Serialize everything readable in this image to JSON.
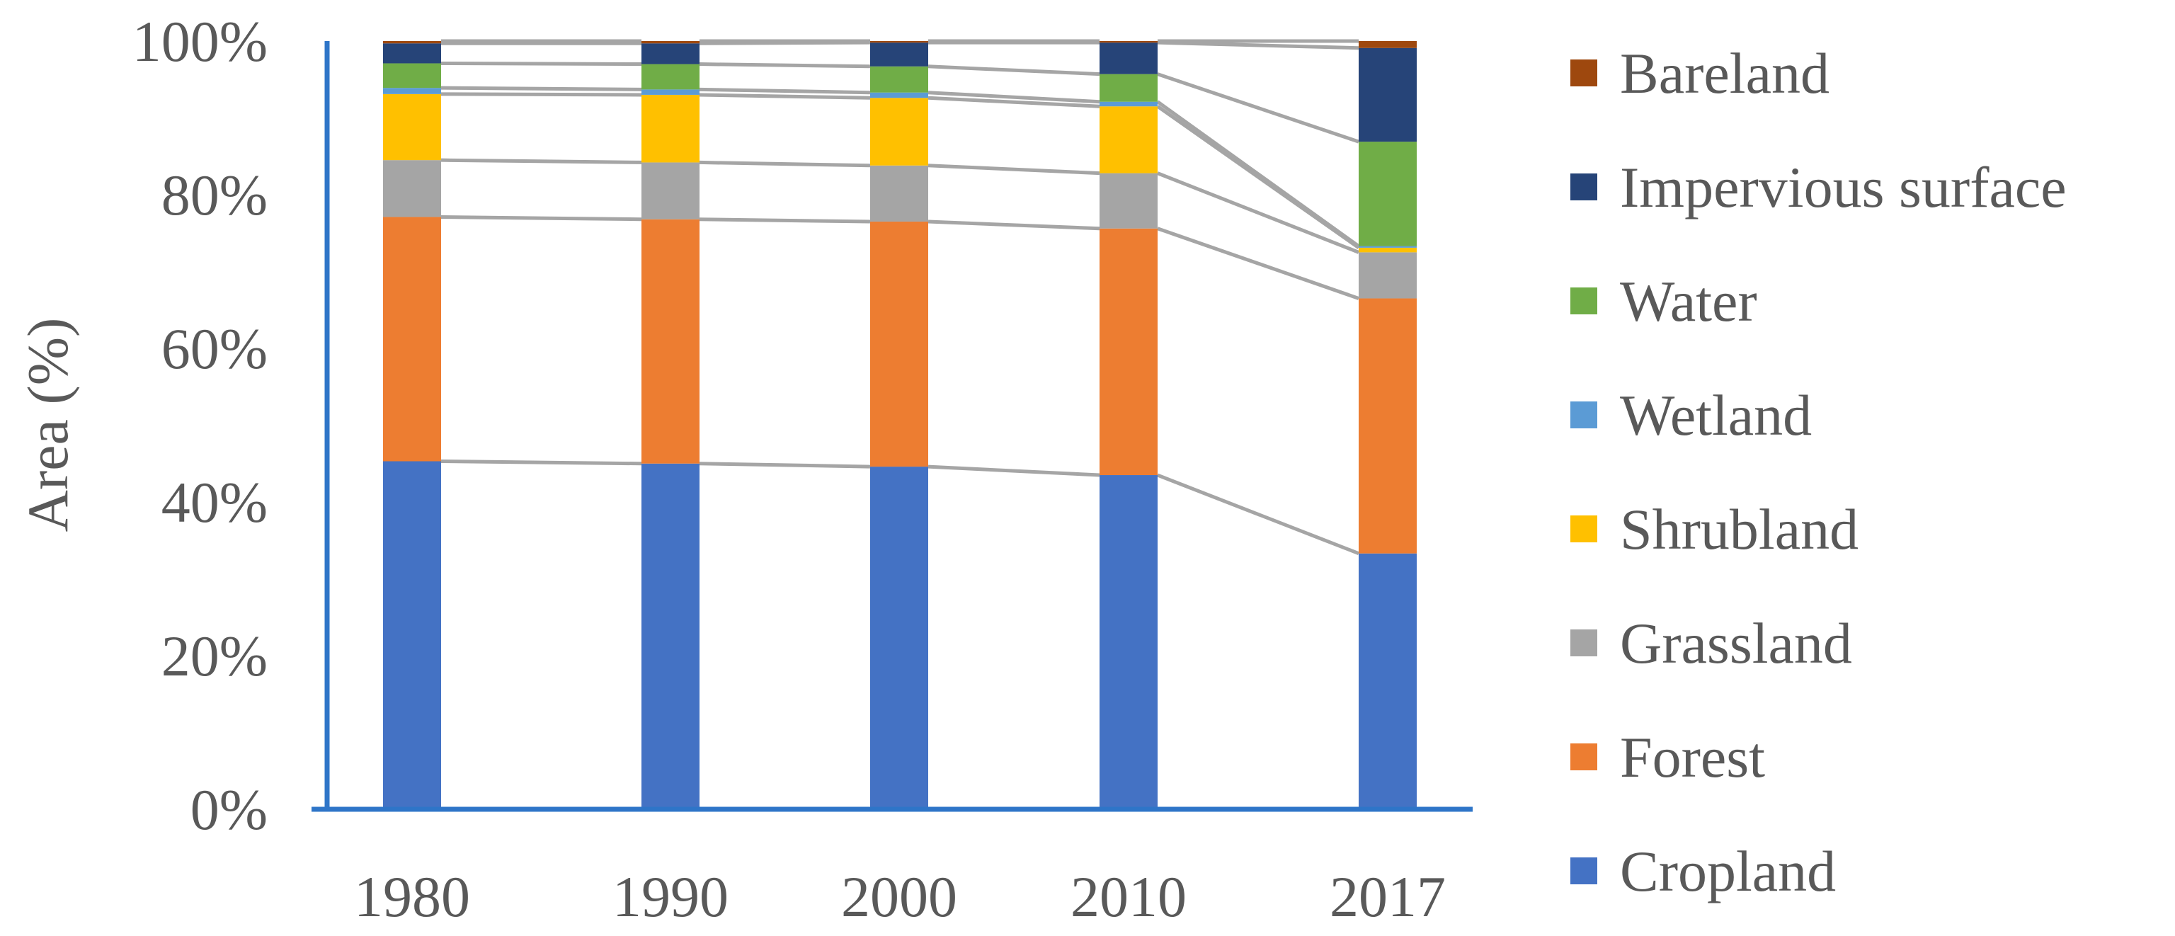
{
  "chart_data": {
    "type": "bar",
    "stacked": true,
    "percent": true,
    "title": "",
    "xlabel": "",
    "ylabel": "Area (%)",
    "ylim": [
      0,
      100
    ],
    "yticks": [
      "0%",
      "20%",
      "40%",
      "60%",
      "80%",
      "100%"
    ],
    "categories": [
      "1980",
      "1990",
      "2000",
      "2010",
      "2017"
    ],
    "series": [
      {
        "name": "Cropland",
        "color": "#4472C4",
        "values": [
          45.3,
          45.0,
          44.6,
          43.5,
          33.3
        ]
      },
      {
        "name": "Forest",
        "color": "#ED7D31",
        "values": [
          31.8,
          31.8,
          31.9,
          32.1,
          33.2
        ]
      },
      {
        "name": "Grassland",
        "color": "#A5A5A5",
        "values": [
          7.4,
          7.4,
          7.3,
          7.2,
          6.0
        ]
      },
      {
        "name": "Shrubland",
        "color": "#FFC000",
        "values": [
          8.6,
          8.8,
          8.8,
          8.7,
          0.6
        ]
      },
      {
        "name": "Wetland",
        "color": "#5B9BD5",
        "values": [
          0.8,
          0.7,
          0.7,
          0.6,
          0.2
        ]
      },
      {
        "name": "Water",
        "color": "#70AD47",
        "values": [
          3.2,
          3.3,
          3.4,
          3.6,
          13.6
        ]
      },
      {
        "name": "Impervious surface",
        "color": "#264478",
        "values": [
          2.6,
          2.7,
          3.1,
          4.1,
          12.2
        ]
      },
      {
        "name": "Bareland",
        "color": "#9E480E",
        "values": [
          0.3,
          0.3,
          0.2,
          0.2,
          0.9
        ]
      }
    ],
    "grid": false,
    "legend": "right",
    "series_lines": true
  }
}
